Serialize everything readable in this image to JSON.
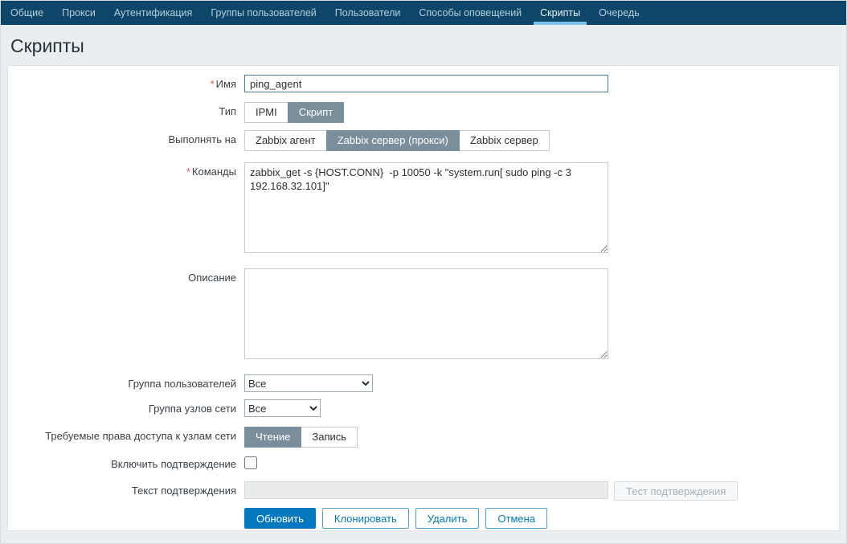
{
  "nav": {
    "items": [
      {
        "label": "Общие"
      },
      {
        "label": "Прокси"
      },
      {
        "label": "Аутентификация"
      },
      {
        "label": "Группы пользователей"
      },
      {
        "label": "Пользователи"
      },
      {
        "label": "Способы оповещений"
      },
      {
        "label": "Скрипты",
        "active": true
      },
      {
        "label": "Очередь"
      }
    ]
  },
  "page": {
    "title": "Скрипты"
  },
  "form": {
    "required_marker": "*",
    "name": {
      "label": "Имя",
      "value": "ping_agent"
    },
    "type": {
      "label": "Тип",
      "options": [
        "IPMI",
        "Скрипт"
      ],
      "selected": "Скрипт"
    },
    "execute_on": {
      "label": "Выполнять на",
      "options": [
        "Zabbix агент",
        "Zabbix сервер (прокси)",
        "Zabbix сервер"
      ],
      "selected": "Zabbix сервер (прокси)"
    },
    "commands": {
      "label": "Команды",
      "value": "zabbix_get -s {HOST.CONN}  -p 10050 -k \"system.run[ sudo ping -c 3 192.168.32.101]\""
    },
    "description": {
      "label": "Описание",
      "value": ""
    },
    "user_group": {
      "label": "Группа пользователей",
      "value": "Все"
    },
    "host_group": {
      "label": "Группа узлов сети",
      "value": "Все"
    },
    "permissions": {
      "label": "Требуемые права доступа к узлам сети",
      "options": [
        "Чтение",
        "Запись"
      ],
      "selected": "Чтение"
    },
    "confirmation": {
      "label": "Включить подтверждение",
      "checked": false
    },
    "confirmation_text": {
      "label": "Текст подтверждения",
      "value": "",
      "test_button": "Тест подтверждения"
    },
    "actions": {
      "update": "Обновить",
      "clone": "Клонировать",
      "delete": "Удалить",
      "cancel": "Отмена"
    }
  },
  "colors": {
    "nav_bg": "#0d4668",
    "nav_text": "#b6cedd",
    "nav_active_underline": "#7fc2e9",
    "page_bg": "#ebeef0",
    "accent_blue": "#0679be",
    "segment_selected_bg": "#7a8f9b",
    "required_red": "#d9534a",
    "disabled_bg": "#e9ebec"
  }
}
